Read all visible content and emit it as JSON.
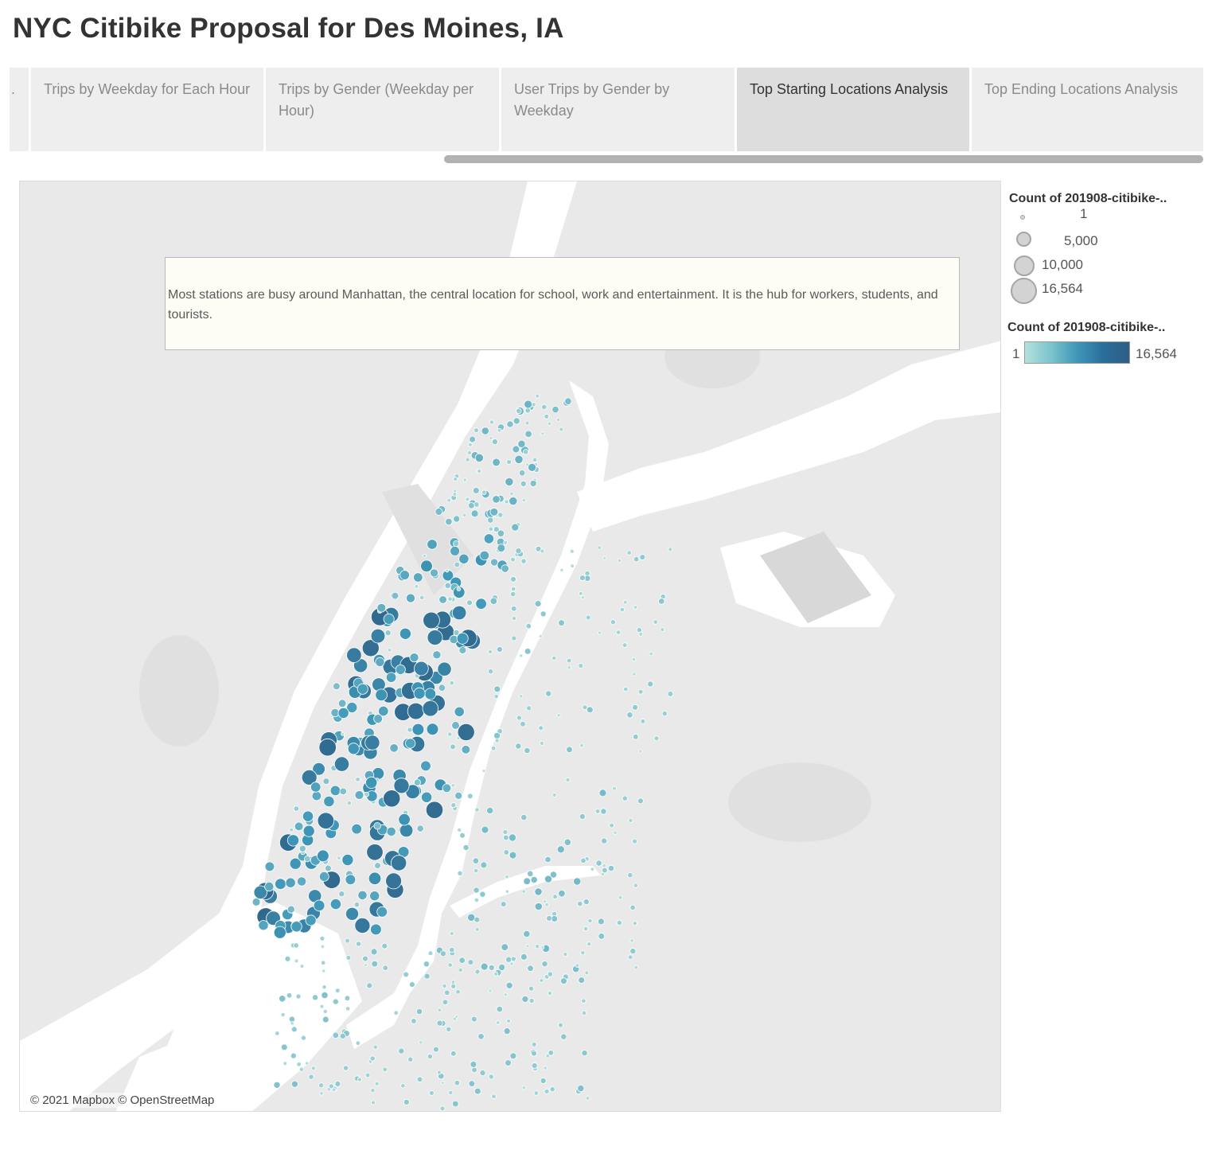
{
  "page": {
    "title": "NYC Citibike Proposal for Des Moines, IA"
  },
  "tabs": {
    "items": [
      {
        "label": ".",
        "active": false
      },
      {
        "label": "Trips by Weekday for Each Hour",
        "active": false
      },
      {
        "label": "Trips by Gender (Weekday per Hour)",
        "active": false
      },
      {
        "label": "User Trips by Gender by Weekday",
        "active": false
      },
      {
        "label": "Top Starting Locations Analysis",
        "active": true
      },
      {
        "label": "Top Ending Locations Analysis",
        "active": false
      }
    ]
  },
  "map": {
    "attribution": "© 2021 Mapbox © OpenStreetMap",
    "annotation": "Most stations are busy around Manhattan, the central location for school, work and entertainment.  It is the hub for workers, students, and tourists.",
    "colors": {
      "water": "#ffffff",
      "land": "#e9e9e9",
      "park": "#e0e0e0",
      "low": "#b4e1dc",
      "mid": "#3f97b7",
      "high": "#2e5d84"
    }
  },
  "legend": {
    "size": {
      "title": "Count of 201908-citibike-..",
      "items": [
        {
          "label": "1",
          "value": 1
        },
        {
          "label": "5,000",
          "value": 5000
        },
        {
          "label": "10,000",
          "value": 10000
        },
        {
          "label": "16,564",
          "value": 16564
        }
      ]
    },
    "color": {
      "title": "Count of 201908-citibike-..",
      "min_label": "1",
      "max_label": "16,564"
    }
  }
}
